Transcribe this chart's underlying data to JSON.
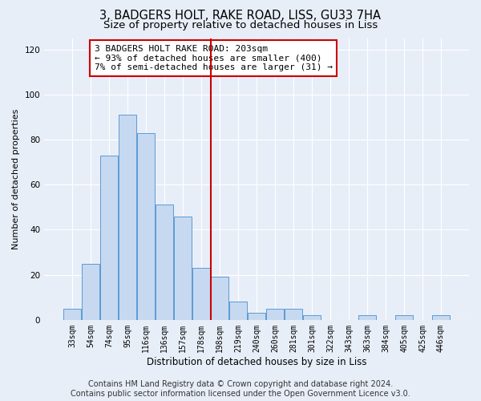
{
  "title": "3, BADGERS HOLT, RAKE ROAD, LISS, GU33 7HA",
  "subtitle": "Size of property relative to detached houses in Liss",
  "xlabel": "Distribution of detached houses by size in Liss",
  "ylabel": "Number of detached properties",
  "categories": [
    "33sqm",
    "54sqm",
    "74sqm",
    "95sqm",
    "116sqm",
    "136sqm",
    "157sqm",
    "178sqm",
    "198sqm",
    "219sqm",
    "240sqm",
    "260sqm",
    "281sqm",
    "301sqm",
    "322sqm",
    "343sqm",
    "363sqm",
    "384sqm",
    "405sqm",
    "425sqm",
    "446sqm"
  ],
  "values": [
    5,
    25,
    73,
    91,
    83,
    51,
    46,
    23,
    19,
    8,
    3,
    5,
    5,
    2,
    0,
    0,
    2,
    0,
    2,
    0,
    2
  ],
  "bar_color": "#c6d9f0",
  "bar_edge_color": "#5b9bd5",
  "vline_color": "#cc0000",
  "annotation_text": "3 BADGERS HOLT RAKE ROAD: 203sqm\n← 93% of detached houses are smaller (400)\n7% of semi-detached houses are larger (31) →",
  "annotation_box_color": "#cc0000",
  "ylim": [
    0,
    125
  ],
  "yticks": [
    0,
    20,
    40,
    60,
    80,
    100,
    120
  ],
  "footer": "Contains HM Land Registry data © Crown copyright and database right 2024.\nContains public sector information licensed under the Open Government Licence v3.0.",
  "bg_color": "#e8eef8",
  "grid_color": "#ffffff",
  "title_fontsize": 10.5,
  "subtitle_fontsize": 9.5,
  "xlabel_fontsize": 8.5,
  "ylabel_fontsize": 8,
  "tick_fontsize": 7,
  "annotation_fontsize": 8,
  "footer_fontsize": 7
}
